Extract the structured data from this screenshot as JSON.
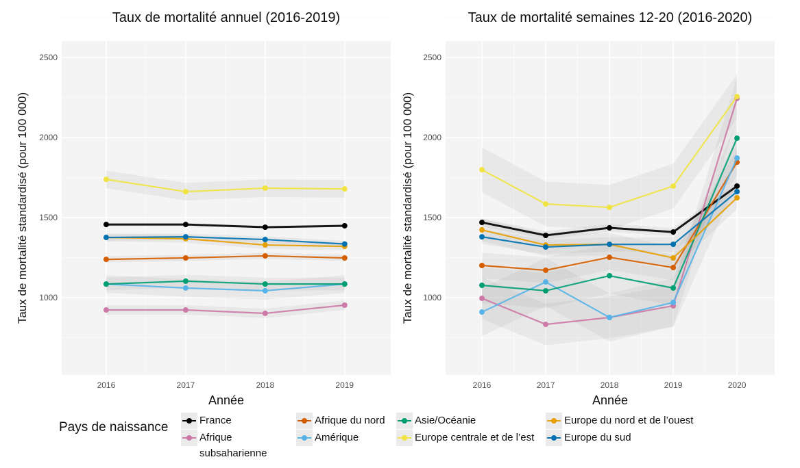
{
  "legend": {
    "title": "Pays de naissance",
    "position": "bottom"
  },
  "chart_data": [
    {
      "type": "line",
      "title": "Taux de mortalité annuel (2016-2019)",
      "xlabel": "Année",
      "ylabel": "Taux de mortalité standardisé (pour 100 000)",
      "x": [
        2016,
        2017,
        2018,
        2019
      ],
      "xticks": [
        "2016",
        "2017",
        "2018",
        "2019"
      ],
      "yticks": [
        1000,
        1500,
        2000,
        2500
      ],
      "xlim": [
        2015.44,
        2019.58
      ],
      "ylim": [
        517,
        2603
      ],
      "grid": true,
      "confidence_band": true,
      "series": [
        {
          "name": "France",
          "color": "#000000",
          "values": [
            1457,
            1457,
            1440,
            1449
          ],
          "band": 8
        },
        {
          "name": "Afrique subsaharienne",
          "color": "#CC79A7",
          "values": [
            923,
            923,
            902,
            953
          ],
          "band": 30
        },
        {
          "name": "Afrique du nord",
          "color": "#D55E00",
          "values": [
            1239,
            1248,
            1261,
            1248
          ],
          "band": 20
        },
        {
          "name": "Amérique",
          "color": "#56B4E9",
          "values": [
            1085,
            1060,
            1043,
            1085
          ],
          "band": 55
        },
        {
          "name": "Asie/Océanie",
          "color": "#009E73",
          "values": [
            1085,
            1103,
            1085,
            1085
          ],
          "band": 40
        },
        {
          "name": "Europe centrale et de l'est",
          "color": "#F0E442",
          "values": [
            1739,
            1662,
            1684,
            1679
          ],
          "band": 55
        },
        {
          "name": "Europe du nord et de l'ouest",
          "color": "#E69F00",
          "values": [
            1376,
            1368,
            1329,
            1320
          ],
          "band": 25
        },
        {
          "name": "Europe du sud",
          "color": "#0072B2",
          "values": [
            1376,
            1380,
            1363,
            1335
          ],
          "band": 20
        }
      ]
    },
    {
      "type": "line",
      "title": "Taux de mortalité semaines 12-20 (2016-2020)",
      "xlabel": "Année",
      "ylabel": "Taux de mortalité standardisé (pour 100 000)",
      "x": [
        2016,
        2017,
        2018,
        2019,
        2020
      ],
      "xticks": [
        "2016",
        "2017",
        "2018",
        "2019",
        "2020"
      ],
      "yticks": [
        1000,
        1500,
        2000,
        2500
      ],
      "xlim": [
        2015.43,
        2020.59
      ],
      "ylim": [
        517,
        2603
      ],
      "grid": true,
      "confidence_band": true,
      "series": [
        {
          "name": "France",
          "color": "#000000",
          "values": [
            1470,
            1389,
            1436,
            1410,
            1697
          ],
          "band": 25
        },
        {
          "name": "Afrique subsaharienne",
          "color": "#CC79A7",
          "values": [
            996,
            833,
            876,
            949,
            2245
          ],
          "band": 130
        },
        {
          "name": "Afrique du nord",
          "color": "#D55E00",
          "values": [
            1201,
            1171,
            1252,
            1188,
            1846
          ],
          "band": 80
        },
        {
          "name": "Amérique",
          "color": "#56B4E9",
          "values": [
            910,
            1098,
            876,
            970,
            1872
          ],
          "band": 150
        },
        {
          "name": "Asie/Océanie",
          "color": "#009E73",
          "values": [
            1077,
            1043,
            1137,
            1060,
            1996
          ],
          "band": 110
        },
        {
          "name": "Europe centrale et de l'est",
          "color": "#F0E442",
          "values": [
            1799,
            1585,
            1564,
            1697,
            2256
          ],
          "band": 140
        },
        {
          "name": "Europe du nord et de l'ouest",
          "color": "#E69F00",
          "values": [
            1423,
            1329,
            1333,
            1248,
            1624
          ],
          "band": 70
        },
        {
          "name": "Europe du sud",
          "color": "#0072B2",
          "values": [
            1380,
            1316,
            1333,
            1333,
            1662
          ],
          "band": 45
        }
      ]
    }
  ]
}
